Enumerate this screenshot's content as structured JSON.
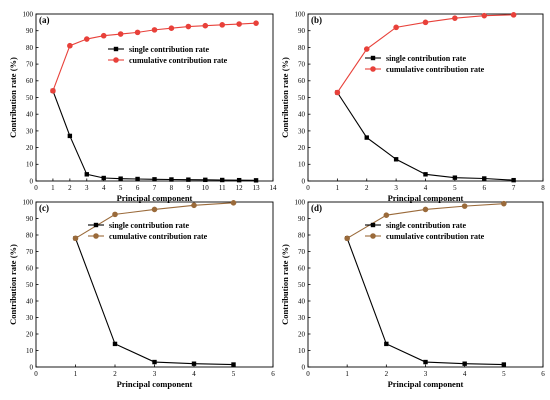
{
  "colors": {
    "single": "#000000",
    "cumulative_red": "#e8413a",
    "cumulative_brown": "#9a6a3a"
  },
  "chart_data": [
    {
      "panel_label": "(a)",
      "type": "line",
      "xlabel": "Principal component",
      "ylabel": "Contribution rate (%)",
      "xlim": [
        0,
        14
      ],
      "ylim": [
        0,
        100
      ],
      "x_ticks": [
        0,
        1,
        2,
        3,
        4,
        5,
        6,
        7,
        8,
        9,
        10,
        11,
        12,
        13,
        14
      ],
      "y_ticks": [
        0,
        10,
        20,
        30,
        40,
        50,
        60,
        70,
        80,
        90,
        100
      ],
      "legend_position": "center-right",
      "series": [
        {
          "name": "single contribution rate",
          "color_key": "single",
          "marker": "square",
          "x": [
            1,
            2,
            3,
            4,
            5,
            6,
            7,
            8,
            9,
            10,
            11,
            12,
            13
          ],
          "values": [
            54,
            27,
            4,
            1.8,
            1.4,
            1.2,
            1.0,
            0.9,
            0.8,
            0.7,
            0.6,
            0.5,
            0.4
          ]
        },
        {
          "name": "cumulative contribution rate",
          "color_key": "cumulative_red",
          "marker": "circle",
          "x": [
            1,
            2,
            3,
            4,
            5,
            6,
            7,
            8,
            9,
            10,
            11,
            12,
            13
          ],
          "values": [
            54,
            81,
            85,
            87,
            88,
            89,
            90.5,
            91.5,
            92.5,
            93,
            93.5,
            94,
            94.5
          ]
        }
      ]
    },
    {
      "panel_label": "(b)",
      "type": "line",
      "xlabel": "Principal component",
      "ylabel": "Contribution rate (%)",
      "xlim": [
        0,
        8
      ],
      "ylim": [
        0,
        100
      ],
      "x_ticks": [
        0,
        1,
        2,
        3,
        4,
        5,
        6,
        7,
        8
      ],
      "y_ticks": [
        0,
        10,
        20,
        30,
        40,
        50,
        60,
        70,
        80,
        90,
        100
      ],
      "legend_position": "center-right",
      "series": [
        {
          "name": "single contribution rate",
          "color_key": "single",
          "marker": "square",
          "x": [
            1,
            2,
            3,
            4,
            5,
            6,
            7
          ],
          "values": [
            53,
            26,
            13,
            4,
            2,
            1.5,
            0.5
          ]
        },
        {
          "name": "cumulative contribution rate",
          "color_key": "cumulative_red",
          "marker": "circle",
          "x": [
            1,
            2,
            3,
            4,
            5,
            6,
            7
          ],
          "values": [
            53,
            79,
            92,
            95,
            97.5,
            99,
            99.5
          ]
        }
      ]
    },
    {
      "panel_label": "(c)",
      "type": "line",
      "xlabel": "Principal component",
      "ylabel": "Contribution rate (%)",
      "xlim": [
        0,
        6
      ],
      "ylim": [
        0,
        100
      ],
      "x_ticks": [
        0,
        1,
        2,
        3,
        4,
        5,
        6
      ],
      "y_ticks": [
        0,
        10,
        20,
        30,
        40,
        50,
        60,
        70,
        80,
        90,
        100
      ],
      "legend_position": "top-right",
      "series": [
        {
          "name": "single contribution rate",
          "color_key": "single",
          "marker": "square",
          "x": [
            1,
            2,
            3,
            4,
            5
          ],
          "values": [
            78,
            14,
            3,
            2,
            1.5
          ]
        },
        {
          "name": "cumulative contribution rate",
          "color_key": "cumulative_brown",
          "marker": "circle",
          "x": [
            1,
            2,
            3,
            4,
            5
          ],
          "values": [
            78,
            92.5,
            95.5,
            98,
            99.5
          ]
        }
      ]
    },
    {
      "panel_label": "(d)",
      "type": "line",
      "xlabel": "Principal component",
      "ylabel": "Contribution rate (%)",
      "xlim": [
        0,
        6
      ],
      "ylim": [
        0,
        100
      ],
      "x_ticks": [
        0,
        1,
        2,
        3,
        4,
        5,
        6
      ],
      "y_ticks": [
        0,
        10,
        20,
        30,
        40,
        50,
        60,
        70,
        80,
        90,
        100
      ],
      "legend_position": "top-right",
      "series": [
        {
          "name": "single contribution rate",
          "color_key": "single",
          "marker": "square",
          "x": [
            1,
            2,
            3,
            4,
            5
          ],
          "values": [
            78,
            14,
            3,
            2,
            1.5
          ]
        },
        {
          "name": "cumulative contribution rate",
          "color_key": "cumulative_brown",
          "marker": "circle",
          "x": [
            1,
            2,
            3,
            4,
            5
          ],
          "values": [
            78,
            92,
            95.5,
            97.5,
            99
          ]
        }
      ]
    }
  ]
}
